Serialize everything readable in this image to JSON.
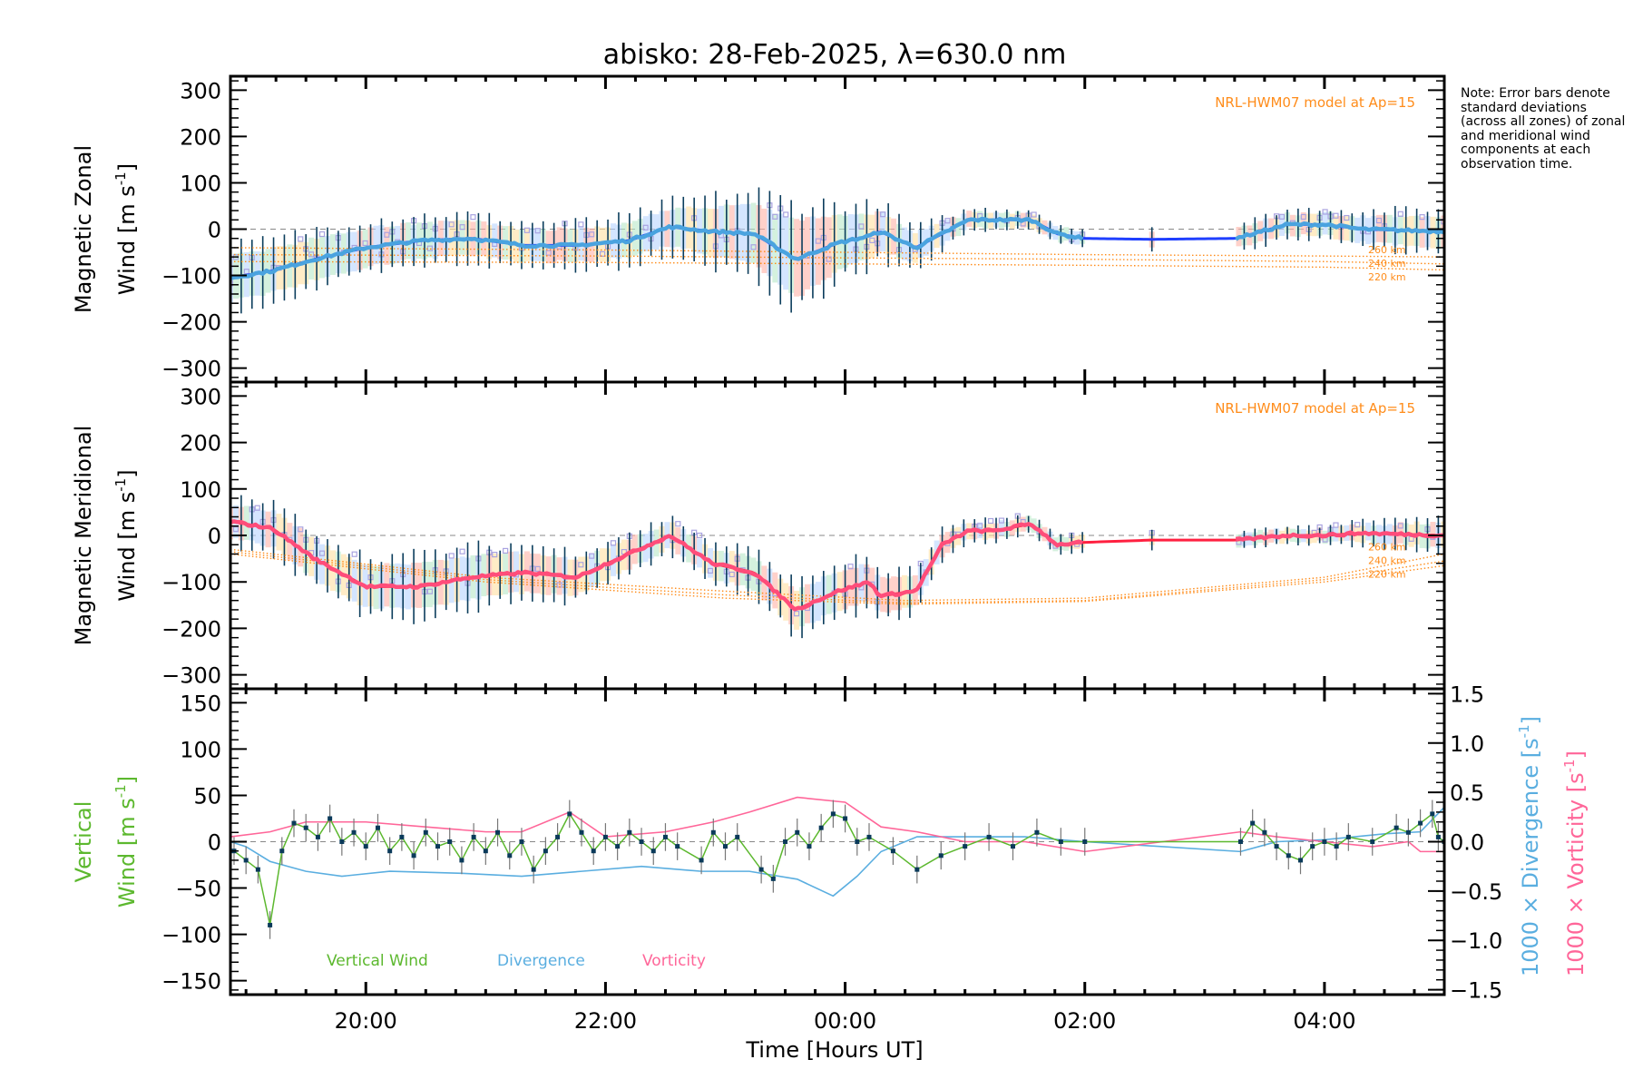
{
  "chart_data": {
    "type": "line",
    "title": "abisko: 28-Feb-2025, λ=630.0 nm",
    "note": "Note: Error bars denote standard deviations (across all zones) of zonal and meridional wind components at each observation time.",
    "xlabel": "Time [Hours UT]",
    "xlim": [
      18.87,
      29.0
    ],
    "x_ticks": [
      {
        "x": 20,
        "label": "20:00"
      },
      {
        "x": 22,
        "label": "22:00"
      },
      {
        "x": 24,
        "label": "00:00"
      },
      {
        "x": 26,
        "label": "02:00"
      },
      {
        "x": 28,
        "label": "04:00"
      }
    ],
    "data_gap": [
      26.0,
      27.26
    ],
    "colors": {
      "zonal": "#4aa3df",
      "zonal_gap": "#1f3fff",
      "meridional": "#ff4d7a",
      "meridional_gap": "#ff2040",
      "errorbar": "#0b3d5c",
      "hwm": "#ff8c1a",
      "vertical": "#5cb82e",
      "vertical_points": "#0a3a5a",
      "divergence": "#5aaee0",
      "vorticity": "#ff6699",
      "scatter": "#a9a3e0"
    },
    "panels": [
      {
        "id": "zonal",
        "ylabel_line1": "Magnetic Zonal",
        "ylabel_line2": "Wind [m s",
        "ylabel_sup": "-1",
        "ylabel_close": "]",
        "ylim": [
          -330,
          330
        ],
        "y_ticks": [
          300,
          200,
          100,
          0,
          -100,
          -200,
          -300
        ],
        "y_tick_labels": [
          "300",
          "200",
          "100",
          "0",
          "−100",
          "−200",
          "−300"
        ],
        "model_label": "NRL-HWM07 model at Ap=15",
        "model_alt_labels": [
          "260 km",
          "240 km",
          "220 km"
        ],
        "series": [
          [
            18.87,
            -105
          ],
          [
            19.22,
            -90
          ],
          [
            19.57,
            -65
          ],
          [
            20.0,
            -40
          ],
          [
            20.45,
            -25
          ],
          [
            20.88,
            -20
          ],
          [
            21.32,
            -35
          ],
          [
            21.76,
            -35
          ],
          [
            22.19,
            -25
          ],
          [
            22.54,
            5
          ],
          [
            22.89,
            -5
          ],
          [
            23.24,
            -10
          ],
          [
            23.59,
            -65
          ],
          [
            23.94,
            -30
          ],
          [
            24.2,
            -15
          ],
          [
            24.29,
            -5
          ],
          [
            24.59,
            -40
          ],
          [
            24.81,
            -10
          ],
          [
            25.03,
            20
          ],
          [
            25.25,
            20
          ],
          [
            25.55,
            20
          ],
          [
            25.77,
            -10
          ],
          [
            25.99,
            -20
          ],
          [
            26.56,
            -22
          ],
          [
            27.26,
            -20
          ],
          [
            27.69,
            10
          ],
          [
            28.0,
            10
          ],
          [
            28.31,
            0
          ],
          [
            29.0,
            -5
          ]
        ],
        "std": [
          [
            18.87,
            70
          ],
          [
            19.5,
            65
          ],
          [
            20.5,
            55
          ],
          [
            21.5,
            50
          ],
          [
            22.5,
            55
          ],
          [
            23.2,
            90
          ],
          [
            23.6,
            120
          ],
          [
            24.0,
            80
          ],
          [
            24.5,
            50
          ],
          [
            25.0,
            25
          ],
          [
            26.0,
            20
          ],
          [
            27.3,
            30
          ],
          [
            28.0,
            35
          ],
          [
            29.0,
            50
          ]
        ],
        "hwm": [
          {
            "alt": "260 km",
            "points": [
              [
                18.87,
                -40
              ],
              [
                22,
                -45
              ],
              [
                24,
                -50
              ],
              [
                26,
                -55
              ],
              [
                28,
                -58
              ],
              [
                29,
                -60
              ]
            ]
          },
          {
            "alt": "240 km",
            "points": [
              [
                18.87,
                -55
              ],
              [
                22,
                -58
              ],
              [
                24,
                -62
              ],
              [
                26,
                -65
              ],
              [
                28,
                -70
              ],
              [
                29,
                -75
              ]
            ]
          },
          {
            "alt": "220 km",
            "points": [
              [
                18.87,
                -70
              ],
              [
                22,
                -72
              ],
              [
                24,
                -75
              ],
              [
                26,
                -78
              ],
              [
                28,
                -82
              ],
              [
                29,
                -88
              ]
            ]
          }
        ]
      },
      {
        "id": "meridional",
        "ylabel_line1": "Magnetic Meridional",
        "ylabel_line2": "Wind [m s",
        "ylabel_sup": "-1",
        "ylabel_close": "]",
        "ylim": [
          -330,
          330
        ],
        "y_ticks": [
          300,
          200,
          100,
          0,
          -100,
          -200,
          -300
        ],
        "y_tick_labels": [
          "300",
          "200",
          "100",
          "0",
          "−100",
          "−200",
          "−300"
        ],
        "model_label": "NRL-HWM07 model at Ap=15",
        "model_alt_labels": [
          "260 km",
          "240 km",
          "220 km"
        ],
        "series": [
          [
            18.87,
            30
          ],
          [
            19.22,
            15
          ],
          [
            19.57,
            -50
          ],
          [
            20.0,
            -110
          ],
          [
            20.45,
            -110
          ],
          [
            20.88,
            -90
          ],
          [
            21.32,
            -80
          ],
          [
            21.76,
            -90
          ],
          [
            22.19,
            -40
          ],
          [
            22.54,
            0
          ],
          [
            22.89,
            -60
          ],
          [
            23.24,
            -80
          ],
          [
            23.59,
            -160
          ],
          [
            23.94,
            -120
          ],
          [
            24.2,
            -100
          ],
          [
            24.29,
            -130
          ],
          [
            24.59,
            -120
          ],
          [
            24.81,
            -20
          ],
          [
            25.03,
            10
          ],
          [
            25.25,
            10
          ],
          [
            25.55,
            25
          ],
          [
            25.77,
            -20
          ],
          [
            25.99,
            -15
          ],
          [
            26.56,
            -10
          ],
          [
            27.26,
            -10
          ],
          [
            27.69,
            0
          ],
          [
            28.0,
            0
          ],
          [
            28.31,
            5
          ],
          [
            29.0,
            0
          ]
        ],
        "std": [
          [
            18.87,
            50
          ],
          [
            19.5,
            60
          ],
          [
            20.5,
            70
          ],
          [
            21.5,
            60
          ],
          [
            22.5,
            40
          ],
          [
            23.2,
            50
          ],
          [
            23.6,
            60
          ],
          [
            24.0,
            60
          ],
          [
            24.5,
            50
          ],
          [
            25.0,
            25
          ],
          [
            26.0,
            20
          ],
          [
            27.3,
            20
          ],
          [
            28.0,
            20
          ],
          [
            29.0,
            40
          ]
        ],
        "hwm": [
          {
            "alt": "260 km",
            "points": [
              [
                18.87,
                -30
              ],
              [
                21,
                -90
              ],
              [
                23,
                -120
              ],
              [
                24.5,
                -140
              ],
              [
                26,
                -135
              ],
              [
                28,
                -90
              ],
              [
                29,
                -40
              ]
            ]
          },
          {
            "alt": "240 km",
            "points": [
              [
                18.87,
                -35
              ],
              [
                21,
                -95
              ],
              [
                23,
                -128
              ],
              [
                24.5,
                -145
              ],
              [
                26,
                -140
              ],
              [
                28,
                -95
              ],
              [
                29,
                -55
              ]
            ]
          },
          {
            "alt": "220 km",
            "points": [
              [
                18.87,
                -40
              ],
              [
                21,
                -100
              ],
              [
                23,
                -135
              ],
              [
                24.5,
                -148
              ],
              [
                26,
                -142
              ],
              [
                28,
                -100
              ],
              [
                29,
                -65
              ]
            ]
          }
        ]
      },
      {
        "id": "vertical",
        "ylabel_line1": "Vertical",
        "ylabel_line2": "Wind [m s",
        "ylabel_sup": "-1",
        "ylabel_close": "]",
        "ylim": [
          -165,
          165
        ],
        "y_ticks": [
          150,
          100,
          50,
          0,
          -50,
          -100,
          -150
        ],
        "y_tick_labels": [
          "150",
          "100",
          "50",
          "0",
          "−50",
          "−100",
          "−150"
        ],
        "y2lim": [
          -1.55,
          1.55
        ],
        "y2_ticks": [
          1.5,
          1.0,
          0.5,
          0.0,
          -0.5,
          -1.0,
          -1.5
        ],
        "y2_tick_labels": [
          "1.5",
          "1.0",
          "0.5",
          "0.0",
          "−0.5",
          "−1.0",
          "−1.5"
        ],
        "y2_label_div": "1000 × Divergence [s",
        "y2_label_vort": "1000 × Vorticity [s",
        "y2_sup": "-1",
        "y2_close": "]",
        "legend": [
          "Vertical Wind",
          "Divergence",
          "Vorticity"
        ],
        "vertical_wind": [
          [
            18.9,
            -10
          ],
          [
            19.0,
            -20
          ],
          [
            19.1,
            -30
          ],
          [
            19.2,
            -90
          ],
          [
            19.3,
            -10
          ],
          [
            19.4,
            20
          ],
          [
            19.5,
            15
          ],
          [
            19.6,
            5
          ],
          [
            19.7,
            25
          ],
          [
            19.8,
            0
          ],
          [
            19.9,
            10
          ],
          [
            20.0,
            -5
          ],
          [
            20.1,
            15
          ],
          [
            20.2,
            -10
          ],
          [
            20.3,
            5
          ],
          [
            20.4,
            -15
          ],
          [
            20.5,
            10
          ],
          [
            20.6,
            -5
          ],
          [
            20.7,
            0
          ],
          [
            20.8,
            -20
          ],
          [
            20.9,
            5
          ],
          [
            21.0,
            -10
          ],
          [
            21.1,
            10
          ],
          [
            21.2,
            -15
          ],
          [
            21.3,
            0
          ],
          [
            21.4,
            -30
          ],
          [
            21.5,
            -10
          ],
          [
            21.6,
            5
          ],
          [
            21.7,
            30
          ],
          [
            21.8,
            10
          ],
          [
            21.9,
            -10
          ],
          [
            22.0,
            5
          ],
          [
            22.1,
            -5
          ],
          [
            22.2,
            10
          ],
          [
            22.3,
            0
          ],
          [
            22.4,
            -10
          ],
          [
            22.5,
            5
          ],
          [
            22.6,
            -5
          ],
          [
            22.8,
            -20
          ],
          [
            22.9,
            10
          ],
          [
            23.0,
            -5
          ],
          [
            23.1,
            5
          ],
          [
            23.3,
            -30
          ],
          [
            23.4,
            -40
          ],
          [
            23.5,
            0
          ],
          [
            23.6,
            10
          ],
          [
            23.7,
            -5
          ],
          [
            23.8,
            15
          ],
          [
            23.9,
            30
          ],
          [
            24.0,
            25
          ],
          [
            24.1,
            0
          ],
          [
            24.2,
            5
          ],
          [
            24.4,
            -10
          ],
          [
            24.6,
            -30
          ],
          [
            24.8,
            -15
          ],
          [
            25.0,
            -5
          ],
          [
            25.2,
            5
          ],
          [
            25.4,
            -5
          ],
          [
            25.6,
            10
          ],
          [
            25.8,
            0
          ],
          [
            26.0,
            0
          ],
          [
            27.3,
            0
          ],
          [
            27.4,
            20
          ],
          [
            27.5,
            10
          ],
          [
            27.6,
            -5
          ],
          [
            27.7,
            -15
          ],
          [
            27.8,
            -20
          ],
          [
            27.9,
            -5
          ],
          [
            28.0,
            0
          ],
          [
            28.1,
            -5
          ],
          [
            28.2,
            5
          ],
          [
            28.4,
            0
          ],
          [
            28.6,
            15
          ],
          [
            28.7,
            10
          ],
          [
            28.8,
            20
          ],
          [
            28.9,
            30
          ],
          [
            28.95,
            5
          ],
          [
            29.0,
            0
          ]
        ],
        "vertical_std": 15,
        "divergence": [
          [
            18.87,
            0
          ],
          [
            19.0,
            -0.05
          ],
          [
            19.2,
            -0.2
          ],
          [
            19.5,
            -0.3
          ],
          [
            19.8,
            -0.35
          ],
          [
            20.2,
            -0.3
          ],
          [
            20.8,
            -0.32
          ],
          [
            21.3,
            -0.35
          ],
          [
            21.8,
            -0.3
          ],
          [
            22.3,
            -0.25
          ],
          [
            22.8,
            -0.3
          ],
          [
            23.2,
            -0.3
          ],
          [
            23.6,
            -0.38
          ],
          [
            23.9,
            -0.55
          ],
          [
            24.1,
            -0.35
          ],
          [
            24.3,
            -0.1
          ],
          [
            24.6,
            0.05
          ],
          [
            25.0,
            0.05
          ],
          [
            25.5,
            0.05
          ],
          [
            26.0,
            0.0
          ],
          [
            27.3,
            -0.1
          ],
          [
            27.6,
            0.0
          ],
          [
            28.0,
            0.02
          ],
          [
            28.5,
            0.08
          ],
          [
            28.8,
            0.1
          ],
          [
            29.0,
            0.35
          ]
        ],
        "vorticity": [
          [
            18.87,
            0.05
          ],
          [
            19.2,
            0.1
          ],
          [
            19.5,
            0.2
          ],
          [
            20.0,
            0.2
          ],
          [
            20.5,
            0.15
          ],
          [
            21.0,
            0.1
          ],
          [
            21.3,
            0.1
          ],
          [
            21.7,
            0.3
          ],
          [
            22.0,
            0.05
          ],
          [
            22.5,
            0.1
          ],
          [
            22.9,
            0.2
          ],
          [
            23.2,
            0.3
          ],
          [
            23.6,
            0.45
          ],
          [
            24.0,
            0.4
          ],
          [
            24.3,
            0.15
          ],
          [
            24.6,
            0.1
          ],
          [
            25.0,
            0.0
          ],
          [
            25.5,
            0.0
          ],
          [
            26.0,
            -0.1
          ],
          [
            27.3,
            0.1
          ],
          [
            27.6,
            0.05
          ],
          [
            28.0,
            0.0
          ],
          [
            28.4,
            -0.05
          ],
          [
            28.7,
            0.0
          ],
          [
            28.8,
            -0.1
          ],
          [
            29.0,
            -0.1
          ]
        ]
      }
    ]
  }
}
